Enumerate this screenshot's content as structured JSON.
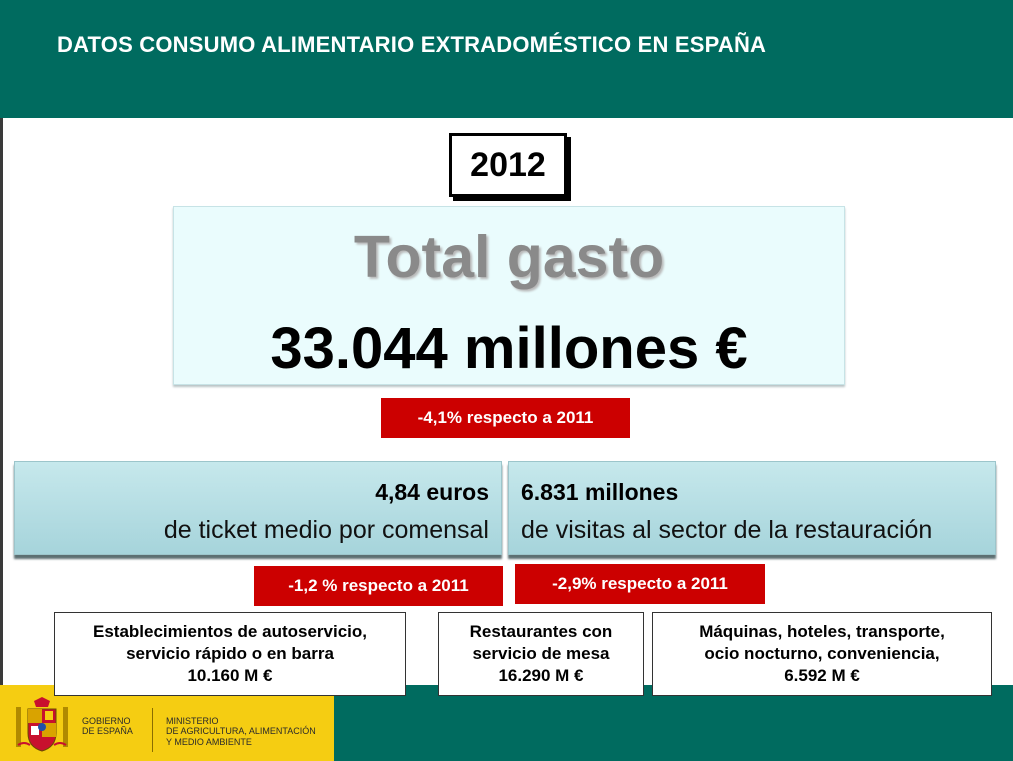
{
  "header": {
    "title": "DATOS CONSUMO ALIMENTARIO EXTRADOMÉSTICO EN ESPAÑA"
  },
  "year": "2012",
  "total": {
    "label": "Total gasto",
    "value": "33.044 millones €",
    "change": "-4,1% respecto a 2011"
  },
  "ticket": {
    "value": "4,84 euros",
    "description": "de ticket medio por comensal",
    "change": "-1,2 % respecto a 2011"
  },
  "visits": {
    "value": "6.831 millones",
    "description": "de visitas al sector de la restauración",
    "change": "-2,9% respecto a 2011"
  },
  "segments": [
    {
      "line1": "Establecimientos de autoservicio,",
      "line2": "servicio rápido o en barra",
      "value": "10.160 M €"
    },
    {
      "line1": "Restaurantes con",
      "line2": "servicio de mesa",
      "value": "16.290 M €"
    },
    {
      "line1": "Máquinas, hoteles, transporte,",
      "line2": "ocio nocturno, conveniencia,",
      "value": "6.592 M €"
    }
  ],
  "footer": {
    "gov_line1": "GOBIERNO",
    "gov_line2": "DE ESPAÑA",
    "ministry_line1": "MINISTERIO",
    "ministry_line2": "DE AGRICULTURA, ALIMENTACIÓN",
    "ministry_line3": "Y MEDIO AMBIENTE"
  },
  "colors": {
    "teal": "#006b5f",
    "red_badge": "#cc0000",
    "yellow": "#f5cd12"
  }
}
